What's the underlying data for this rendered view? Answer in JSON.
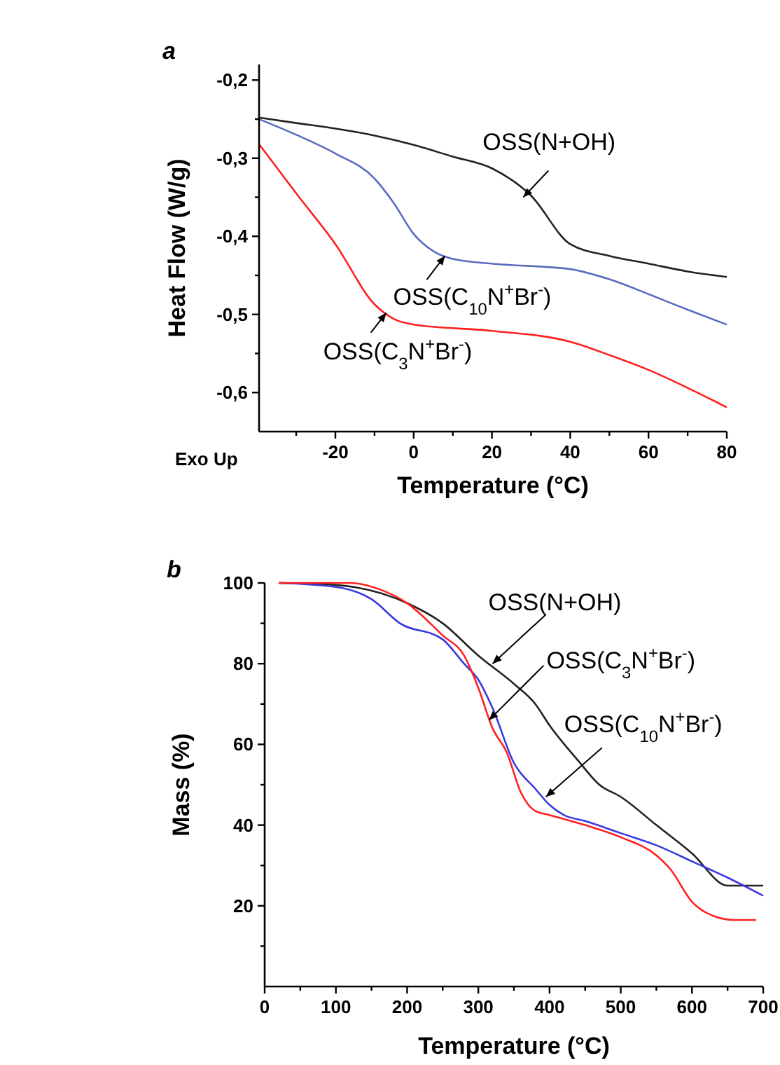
{
  "chart_data": [
    {
      "type": "line",
      "title": "a",
      "xlabel": "Temperature (°C)",
      "ylabel": "Heat Flow (W/g)",
      "xlim": [
        -39.5,
        80
      ],
      "ylim": [
        -0.65,
        -0.18
      ],
      "grid": false,
      "line_style": "solid",
      "marker": "none",
      "xticks": [
        {
          "value": -30,
          "label": null
        },
        -20,
        {
          "value": -10,
          "label": null
        },
        0,
        {
          "value": 10,
          "label": null
        },
        20,
        {
          "value": 30,
          "label": null
        },
        40,
        {
          "value": 50,
          "label": null
        },
        60,
        {
          "value": 70,
          "label": null
        },
        80
      ],
      "yticks": [
        {
          "value": -0.2,
          "label": "-0,2"
        },
        {
          "value": -0.25,
          "label": null
        },
        {
          "value": -0.3,
          "label": "-0,3"
        },
        {
          "value": -0.35,
          "label": null
        },
        {
          "value": -0.4,
          "label": "-0,4"
        },
        {
          "value": -0.45,
          "label": null
        },
        {
          "value": -0.5,
          "label": "-0,5"
        },
        {
          "value": -0.55,
          "label": null
        },
        {
          "value": -0.6,
          "label": "-0,6"
        }
      ],
      "annotations": [
        {
          "text": "OSS(N+OH)",
          "x": 28,
          "y": -0.35
        },
        {
          "text": "OSS(C$_{10}$N$^{+}$Br$^{-}$)",
          "x": 8,
          "y": -0.425
        },
        {
          "text": "OSS(C$_{3}$N$^{+}$Br$^{-}$)",
          "x": -7,
          "y": -0.498
        },
        "Exo Up"
      ],
      "series": [
        {
          "color": "#222222",
          "x": [
            -39.5,
            -30,
            -20,
            -10,
            0,
            10,
            20,
            30,
            40,
            50,
            60,
            70,
            80
          ],
          "values": [
            -0.248,
            -0.255,
            -0.262,
            -0.271,
            -0.283,
            -0.298,
            -0.313,
            -0.348,
            -0.41,
            -0.425,
            -0.435,
            -0.445,
            -0.452
          ]
        },
        {
          "color": "#5a6cc0",
          "x": [
            -39.5,
            -30,
            -20,
            -10,
            -5,
            0,
            5,
            10,
            20,
            40,
            50,
            60,
            70,
            80
          ],
          "values": [
            -0.25,
            -0.27,
            -0.294,
            -0.326,
            -0.358,
            -0.397,
            -0.419,
            -0.429,
            -0.435,
            -0.442,
            -0.455,
            -0.474,
            -0.494,
            -0.513
          ]
        },
        {
          "color": "#ff2020",
          "x": [
            -39.5,
            -30,
            -20,
            -10,
            -5,
            0,
            20,
            40,
            50,
            60,
            70,
            80
          ],
          "values": [
            -0.282,
            -0.345,
            -0.41,
            -0.487,
            -0.506,
            -0.513,
            -0.521,
            -0.535,
            -0.552,
            -0.571,
            -0.594,
            -0.619
          ]
        }
      ]
    },
    {
      "type": "line",
      "title": "b",
      "xlabel": "Temperature (°C)",
      "ylabel": "Mass (%)",
      "xlim": [
        0,
        700
      ],
      "ylim": [
        0,
        100
      ],
      "grid": false,
      "line_style": "solid",
      "marker": "none",
      "xticks": [
        0,
        {
          "value": 50,
          "label": null
        },
        100,
        {
          "value": 150,
          "label": null
        },
        200,
        {
          "value": 250,
          "label": null
        },
        300,
        {
          "value": 350,
          "label": null
        },
        400,
        {
          "value": 450,
          "label": null
        },
        500,
        {
          "value": 550,
          "label": null
        },
        600,
        {
          "value": 650,
          "label": null
        },
        700
      ],
      "yticks": [
        {
          "value": 10,
          "label": null
        },
        20,
        {
          "value": 30,
          "label": null
        },
        40,
        {
          "value": 50,
          "label": null
        },
        60,
        {
          "value": 70,
          "label": null
        },
        80,
        {
          "value": 90,
          "label": null
        },
        100
      ],
      "annotations": [
        {
          "text": "OSS(N+OH)",
          "x": 320,
          "y": 80
        },
        {
          "text": "OSS(C$_{3}$N$^{+}$Br$^{-}$)",
          "x": 315,
          "y": 66
        },
        {
          "text": "OSS(C$_{10}$N$^{+}$Br$^{-}$)",
          "x": 395,
          "y": 47
        }
      ],
      "series": [
        {
          "color": "#222222",
          "x": [
            20,
            100,
            200,
            250,
            300,
            350,
            380,
            400,
            440,
            470,
            500,
            550,
            600,
            650,
            700
          ],
          "values": [
            100,
            99.5,
            95,
            90,
            82,
            75,
            70,
            64.7,
            56,
            50,
            47,
            40,
            33,
            25,
            25
          ]
        },
        {
          "color": "#3a3ae0",
          "x": [
            20,
            100,
            150,
            190,
            250,
            280,
            300,
            320,
            350,
            380,
            400,
            420,
            450,
            500,
            550,
            600,
            650,
            700
          ],
          "values": [
            100,
            99,
            96,
            90,
            86,
            80,
            76,
            69,
            55.4,
            49,
            45,
            42.5,
            41,
            38,
            35,
            31,
            27,
            22.5
          ]
        },
        {
          "color": "#ff2020",
          "x": [
            20,
            120,
            160,
            200,
            250,
            280,
            300,
            320,
            340,
            360,
            380,
            400,
            450,
            500,
            550,
            570,
            600,
            630,
            660,
            690
          ],
          "values": [
            100,
            100,
            98.5,
            95,
            87,
            82,
            74,
            64,
            58,
            48,
            43.5,
            42.5,
            40,
            37,
            32.5,
            29,
            21,
            17.5,
            16.5,
            16.5
          ]
        }
      ]
    }
  ]
}
